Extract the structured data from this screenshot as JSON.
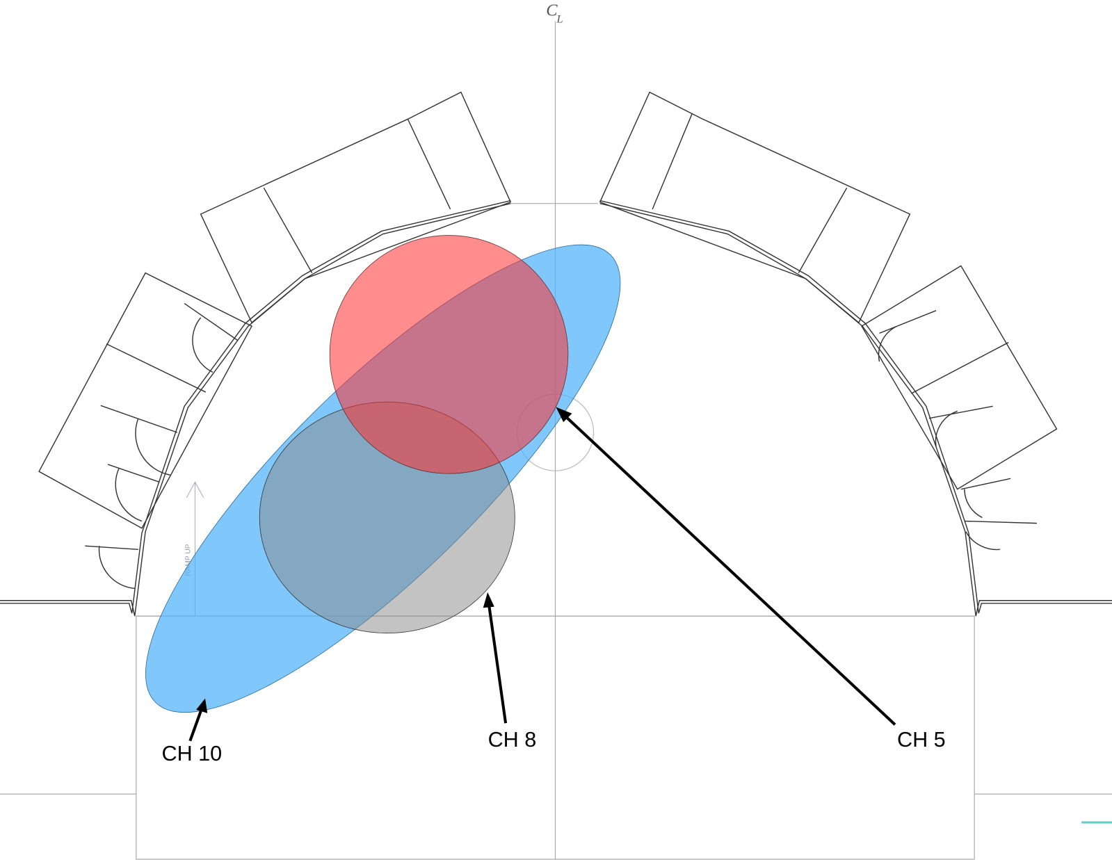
{
  "centerline": {
    "symbol": "C",
    "subscript": "L"
  },
  "ramp_label": "RAMP UP",
  "callouts": [
    {
      "label": "CH 10"
    },
    {
      "label": "CH 8"
    },
    {
      "label": "CH 5"
    }
  ]
}
